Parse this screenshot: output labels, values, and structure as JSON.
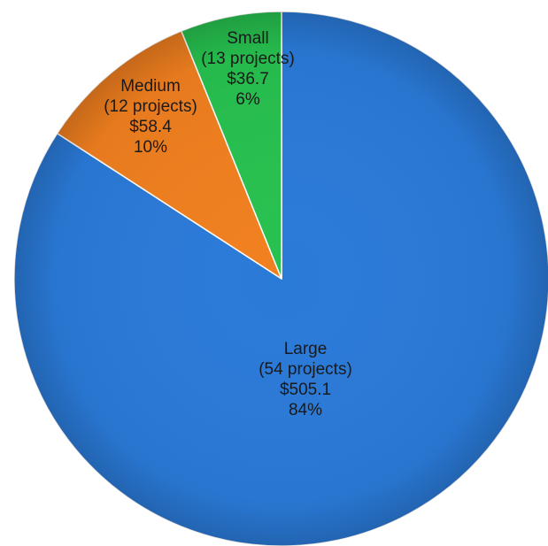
{
  "chart_data": {
    "type": "pie",
    "start_angle": "12 o'clock",
    "direction": "clockwise",
    "slices": [
      {
        "category": "Large",
        "projects": "(54 projects)",
        "value": 505.1,
        "value_label": "$505.1",
        "percent_label": "84%",
        "color": "#2a7ad8"
      },
      {
        "category": "Medium",
        "projects": "(12 projects)",
        "value": 58.4,
        "value_label": "$58.4",
        "percent_label": "10%",
        "color": "#f07f1f"
      },
      {
        "category": "Small",
        "projects": "(13 projects)",
        "value": 36.7,
        "value_label": "$36.7",
        "percent_label": "6%",
        "color": "#27c14f"
      }
    ],
    "title": "",
    "legend": "none"
  }
}
